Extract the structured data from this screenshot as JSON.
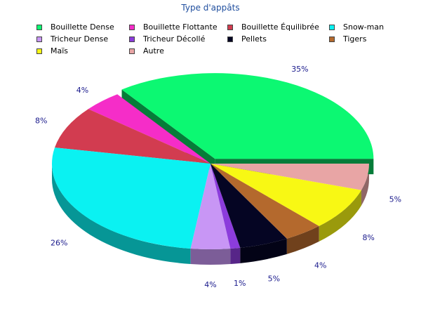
{
  "chart_data": {
    "type": "pie",
    "title": "Type d'appâts",
    "legend_position": "top",
    "three_d": true,
    "slices": [
      {
        "name": "Bouillette Dense",
        "value": 35,
        "label": "35%",
        "color": "#0cf872",
        "exploded": true
      },
      {
        "name": "Bouillette Flottante",
        "value": 4,
        "label": "4%",
        "color": "#f52dc8"
      },
      {
        "name": "Bouillette Équilibrée",
        "value": 8,
        "label": "8%",
        "color": "#d23c50"
      },
      {
        "name": "Snow-man",
        "value": 26,
        "label": "26%",
        "color": "#0af2f2"
      },
      {
        "name": "Tricheur Dense",
        "value": 4,
        "label": "4%",
        "color": "#c896f5"
      },
      {
        "name": "Tricheur Décollé",
        "value": 1,
        "label": "1%",
        "color": "#8c3cdc"
      },
      {
        "name": "Pellets",
        "value": 5,
        "label": "5%",
        "color": "#050523"
      },
      {
        "name": "Tigers",
        "value": 4,
        "label": "4%",
        "color": "#b4692d"
      },
      {
        "name": "Maïs",
        "value": 8,
        "label": "8%",
        "color": "#f8f814"
      },
      {
        "name": "Autre",
        "value": 5,
        "label": "5%",
        "color": "#e8a5a5"
      }
    ]
  }
}
